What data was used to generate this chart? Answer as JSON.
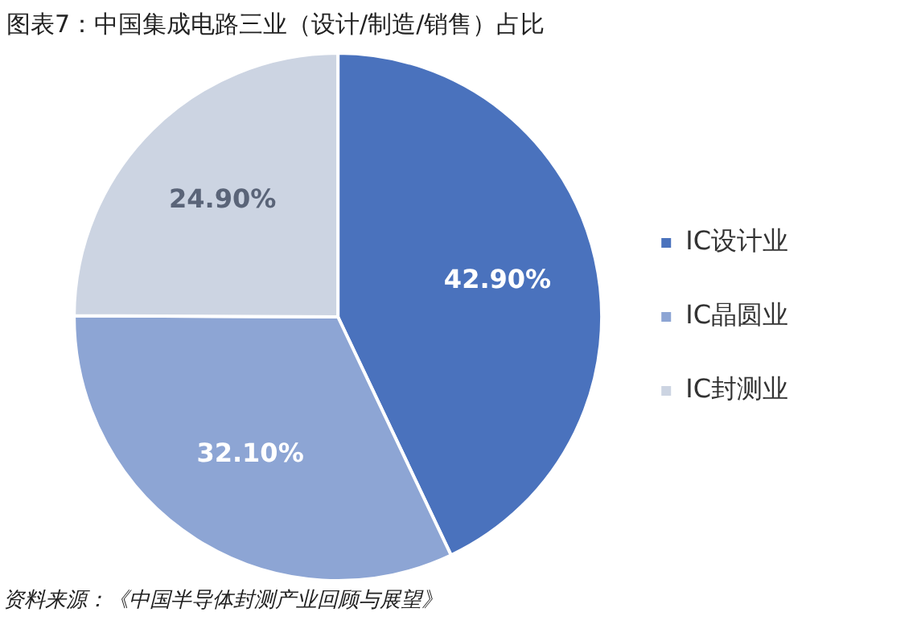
{
  "chart_data": {
    "type": "pie",
    "title": "图表7：中国集成电路三业（设计/制造/销售）占比",
    "categories": [
      "IC设计业",
      "IC晶圆业",
      "IC封测业"
    ],
    "values": [
      42.9,
      32.1,
      24.9
    ],
    "value_labels": [
      "42.90%",
      "32.10%",
      "24.90%"
    ],
    "colors": [
      "#4a72bd",
      "#8da5d4",
      "#ccd4e2"
    ],
    "legend": "right",
    "annotations": [
      "资料来源：《中国半导体封测产业回顾与展望》"
    ]
  }
}
